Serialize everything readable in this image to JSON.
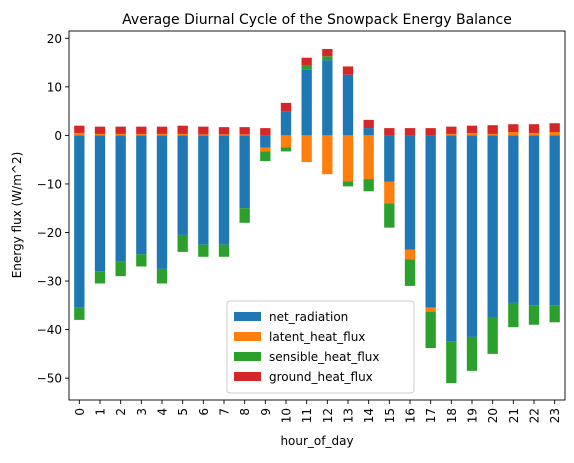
{
  "chart_data": {
    "type": "bar",
    "stacked": true,
    "title": "Average Diurnal Cycle of the Snowpack Energy Balance",
    "xlabel": "hour_of_day",
    "ylabel": "Energy flux (W/m^2)",
    "ylim": [
      -54.5,
      21.5
    ],
    "yticks": [
      20,
      10,
      0,
      -10,
      -20,
      -30,
      -40,
      -50
    ],
    "categories": [
      "0",
      "1",
      "2",
      "3",
      "4",
      "5",
      "6",
      "7",
      "8",
      "9",
      "10",
      "11",
      "12",
      "13",
      "14",
      "15",
      "16",
      "17",
      "18",
      "19",
      "20",
      "21",
      "22",
      "23"
    ],
    "grid": false,
    "legend_position": "bottom-center",
    "series": [
      {
        "name": "net_radiation",
        "color": "#1f77b4",
        "values": [
          -35.5,
          -28,
          -26,
          -24.5,
          -27.5,
          -20.5,
          -22.5,
          -22.5,
          -15,
          -2.5,
          5,
          13.5,
          15.5,
          12.5,
          1.5,
          -9.5,
          -23.5,
          -35.5,
          -42.5,
          -41.5,
          -37.5,
          -34.5,
          -35,
          -35
        ]
      },
      {
        "name": "latent_heat_flux",
        "color": "#ff7f0e",
        "values": [
          0.5,
          0.3,
          0.3,
          0.3,
          0.3,
          0.3,
          0.2,
          0.2,
          0.2,
          -0.8,
          -2.5,
          -5.5,
          -8,
          -9.5,
          -9,
          -4.5,
          -2,
          -0.8,
          0.3,
          0.5,
          0.3,
          0.7,
          0.5,
          0.7
        ]
      },
      {
        "name": "sensible_heat_flux",
        "color": "#2ca02c",
        "values": [
          -2.5,
          -2.5,
          -3,
          -2.5,
          -3,
          -3.5,
          -2.5,
          -2.5,
          -3,
          -2,
          -0.8,
          1,
          0.8,
          -1,
          -2.5,
          -5,
          -5.5,
          -7.5,
          -8.5,
          -7,
          -7.5,
          -5,
          -4,
          -3.5
        ]
      },
      {
        "name": "ground_heat_flux",
        "color": "#d62728",
        "values": [
          1.5,
          1.5,
          1.5,
          1.5,
          1.5,
          1.7,
          1.6,
          1.5,
          1.5,
          1.5,
          1.7,
          1.5,
          1.5,
          1.7,
          1.7,
          1.5,
          1.5,
          1.5,
          1.5,
          1.5,
          1.8,
          1.6,
          1.8,
          1.8
        ]
      }
    ]
  }
}
